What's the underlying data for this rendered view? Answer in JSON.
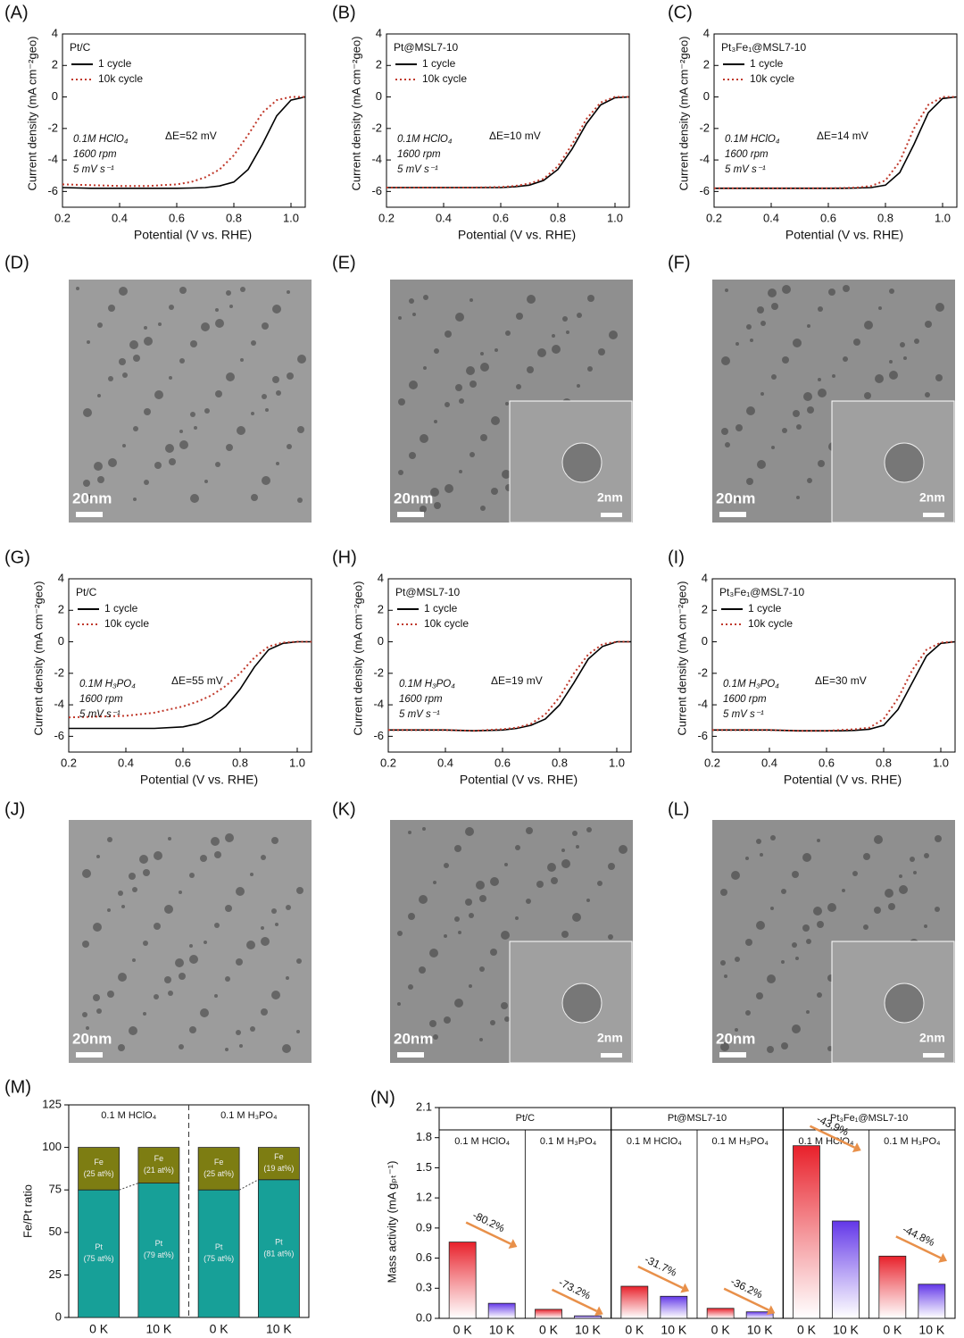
{
  "chart_data": [
    {
      "type": "line",
      "panel_label": "(A)",
      "title": "Pt/C",
      "x_label": "Potential (V vs. RHE)",
      "y_label": "Current density (mA cm⁻²geo)",
      "conditions": [
        "0.1M HClO₄",
        "1600 rpm",
        "5 mV s⁻¹"
      ],
      "annotation": "ΔE=52 mV",
      "x": [
        0.2,
        0.3,
        0.4,
        0.5,
        0.6,
        0.65,
        0.7,
        0.75,
        0.8,
        0.85,
        0.9,
        0.95,
        1.0,
        1.05
      ],
      "series": [
        {
          "name": "1 cycle",
          "color": "#000000",
          "style": "solid",
          "values": [
            -5.75,
            -5.8,
            -5.8,
            -5.8,
            -5.8,
            -5.78,
            -5.75,
            -5.65,
            -5.4,
            -4.6,
            -3.0,
            -1.2,
            -0.2,
            0
          ]
        },
        {
          "name": "10k cycle",
          "color": "#c0392b",
          "style": "dotted",
          "values": [
            -5.55,
            -5.6,
            -5.65,
            -5.65,
            -5.55,
            -5.4,
            -5.1,
            -4.6,
            -3.7,
            -2.4,
            -1.0,
            -0.2,
            0,
            0
          ]
        }
      ],
      "xlim": [
        0.2,
        1.05
      ],
      "ylim": [
        -7,
        4
      ],
      "xticks": [
        0.2,
        0.4,
        0.6,
        0.8,
        {
          "value": 1,
          "label": "1.0"
        }
      ],
      "yticks": [
        -6,
        -4,
        -2,
        0,
        2,
        4
      ]
    },
    {
      "type": "line",
      "panel_label": "(B)",
      "title": "Pt@MSL7-10",
      "x_label": "Potential (V vs. RHE)",
      "y_label": "Current density (mA cm⁻²geo)",
      "conditions": [
        "0.1M HClO₄",
        "1600 rpm",
        "5 mV s⁻¹"
      ],
      "annotation": "ΔE=10 mV",
      "x": [
        0.2,
        0.3,
        0.4,
        0.5,
        0.6,
        0.65,
        0.7,
        0.75,
        0.8,
        0.85,
        0.9,
        0.95,
        1.0,
        1.05
      ],
      "series": [
        {
          "name": "1 cycle",
          "color": "#000000",
          "style": "solid",
          "values": [
            -5.75,
            -5.75,
            -5.75,
            -5.75,
            -5.75,
            -5.7,
            -5.6,
            -5.3,
            -4.6,
            -3.3,
            -1.7,
            -0.5,
            -0.05,
            0
          ]
        },
        {
          "name": "10k cycle",
          "color": "#c0392b",
          "style": "dotted",
          "values": [
            -5.75,
            -5.75,
            -5.75,
            -5.75,
            -5.72,
            -5.65,
            -5.5,
            -5.2,
            -4.4,
            -3.0,
            -1.4,
            -0.35,
            0,
            0
          ]
        }
      ],
      "xlim": [
        0.2,
        1.05
      ],
      "ylim": [
        -7,
        4
      ],
      "xticks": [
        0.2,
        0.4,
        0.6,
        0.8,
        {
          "value": 1,
          "label": "1.0"
        }
      ],
      "yticks": [
        -6,
        -4,
        -2,
        0,
        2,
        4
      ]
    },
    {
      "type": "line",
      "panel_label": "(C)",
      "title": "Pt₃Fe₁@MSL7-10",
      "x_label": "Potential (V vs. RHE)",
      "y_label": "Current density (mA cm⁻²geo)",
      "conditions": [
        "0.1M HClO₄",
        "1600 rpm",
        "5 mV s⁻¹"
      ],
      "annotation": "ΔE=14 mV",
      "x": [
        0.2,
        0.3,
        0.4,
        0.5,
        0.6,
        0.65,
        0.7,
        0.75,
        0.8,
        0.85,
        0.9,
        0.95,
        1.0,
        1.05
      ],
      "series": [
        {
          "name": "1 cycle",
          "color": "#000000",
          "style": "solid",
          "values": [
            -5.8,
            -5.8,
            -5.8,
            -5.8,
            -5.8,
            -5.8,
            -5.78,
            -5.75,
            -5.6,
            -4.8,
            -3.0,
            -1.0,
            -0.1,
            0
          ]
        },
        {
          "name": "10k cycle",
          "color": "#c0392b",
          "style": "dotted",
          "values": [
            -5.8,
            -5.8,
            -5.8,
            -5.8,
            -5.8,
            -5.78,
            -5.75,
            -5.65,
            -5.3,
            -4.1,
            -2.0,
            -0.5,
            0,
            0
          ]
        }
      ],
      "xlim": [
        0.2,
        1.05
      ],
      "ylim": [
        -7,
        4
      ],
      "xticks": [
        0.2,
        0.4,
        0.6,
        0.8,
        {
          "value": 1,
          "label": "1.0"
        }
      ],
      "yticks": [
        -6,
        -4,
        -2,
        0,
        2,
        4
      ]
    },
    {
      "type": "line",
      "panel_label": "(G)",
      "title": "Pt/C",
      "x_label": "Potential (V vs. RHE)",
      "y_label": "Current density (mA cm⁻²geo)",
      "conditions": [
        "0.1M H₃PO₄",
        "1600 rpm",
        "5 mV s⁻¹"
      ],
      "annotation": "ΔE=55 mV",
      "x": [
        0.2,
        0.3,
        0.4,
        0.5,
        0.6,
        0.65,
        0.7,
        0.75,
        0.8,
        0.85,
        0.9,
        0.95,
        1.0,
        1.05
      ],
      "series": [
        {
          "name": "1 cycle",
          "color": "#000000",
          "style": "solid",
          "values": [
            -5.5,
            -5.5,
            -5.5,
            -5.5,
            -5.4,
            -5.2,
            -4.8,
            -4.1,
            -3.0,
            -1.6,
            -0.5,
            -0.1,
            0,
            0
          ]
        },
        {
          "name": "10k cycle",
          "color": "#c0392b",
          "style": "dotted",
          "values": [
            -4.8,
            -4.75,
            -4.7,
            -4.5,
            -4.1,
            -3.8,
            -3.4,
            -2.8,
            -2.0,
            -1.0,
            -0.3,
            -0.05,
            0,
            0
          ]
        }
      ],
      "xlim": [
        0.2,
        1.05
      ],
      "ylim": [
        -7,
        4
      ],
      "xticks": [
        0.2,
        0.4,
        0.6,
        0.8,
        {
          "value": 1,
          "label": "1.0"
        }
      ],
      "yticks": [
        -6,
        -4,
        -2,
        0,
        2,
        4
      ]
    },
    {
      "type": "line",
      "panel_label": "(H)",
      "title": "Pt@MSL7-10",
      "x_label": "Potential (V vs. RHE)",
      "y_label": "Current density (mA cm⁻²geo)",
      "conditions": [
        "0.1M H₃PO₄",
        "1600 rpm",
        "5 mV s⁻¹"
      ],
      "annotation": "ΔE=19 mV",
      "x": [
        0.2,
        0.3,
        0.4,
        0.5,
        0.6,
        0.65,
        0.7,
        0.75,
        0.8,
        0.85,
        0.9,
        0.95,
        1.0,
        1.05
      ],
      "series": [
        {
          "name": "1 cycle",
          "color": "#000000",
          "style": "solid",
          "values": [
            -5.6,
            -5.6,
            -5.6,
            -5.65,
            -5.6,
            -5.5,
            -5.3,
            -4.9,
            -4.0,
            -2.6,
            -1.1,
            -0.3,
            0,
            0
          ]
        },
        {
          "name": "10k cycle",
          "color": "#c0392b",
          "style": "dotted",
          "values": [
            -5.6,
            -5.6,
            -5.6,
            -5.65,
            -5.55,
            -5.45,
            -5.2,
            -4.6,
            -3.5,
            -2.0,
            -0.8,
            -0.15,
            0,
            0
          ]
        }
      ],
      "xlim": [
        0.2,
        1.05
      ],
      "ylim": [
        -7,
        4
      ],
      "xticks": [
        0.2,
        0.4,
        0.6,
        0.8,
        {
          "value": 1,
          "label": "1.0"
        }
      ],
      "yticks": [
        -6,
        -4,
        -2,
        0,
        2,
        4
      ]
    },
    {
      "type": "line",
      "panel_label": "(I)",
      "title": "Pt₃Fe₁@MSL7-10",
      "x_label": "Potential (V vs. RHE)",
      "y_label": "Current density (mA cm⁻²geo)",
      "conditions": [
        "0.1M H₃PO₄",
        "1600 rpm",
        "5 mV s⁻¹"
      ],
      "annotation": "ΔE=30 mV",
      "x": [
        0.2,
        0.3,
        0.4,
        0.5,
        0.6,
        0.65,
        0.7,
        0.75,
        0.8,
        0.85,
        0.9,
        0.95,
        1.0,
        1.05
      ],
      "series": [
        {
          "name": "1 cycle",
          "color": "#000000",
          "style": "solid",
          "values": [
            -5.6,
            -5.6,
            -5.6,
            -5.65,
            -5.65,
            -5.65,
            -5.62,
            -5.55,
            -5.3,
            -4.3,
            -2.6,
            -0.9,
            -0.1,
            0
          ]
        },
        {
          "name": "10k cycle",
          "color": "#c0392b",
          "style": "dotted",
          "values": [
            -5.6,
            -5.6,
            -5.6,
            -5.65,
            -5.65,
            -5.6,
            -5.55,
            -5.45,
            -4.9,
            -3.6,
            -1.8,
            -0.5,
            -0.05,
            0
          ]
        }
      ],
      "xlim": [
        0.2,
        1.05
      ],
      "ylim": [
        -7,
        4
      ],
      "xticks": [
        0.2,
        0.4,
        0.6,
        0.8,
        {
          "value": 1,
          "label": "1.0"
        }
      ],
      "yticks": [
        -6,
        -4,
        -2,
        0,
        2,
        4
      ]
    },
    {
      "type": "stacked_bar",
      "panel_label": "(M)",
      "y_label": "Fe/Pt ratio",
      "categories": [
        "0 K",
        "10 K",
        "0 K",
        "10 K"
      ],
      "groups": [
        "0.1 M HClO₄",
        "0.1 M H₃PO₄"
      ],
      "series": [
        {
          "name": "Pt",
          "color": "#17a098",
          "values": [
            75,
            79,
            75,
            81
          ],
          "value_labels": [
            "(75 at%)",
            "(79 at%)",
            "(75 at%)",
            "(81 at%)"
          ]
        },
        {
          "name": "Fe",
          "color": "#7d7d12",
          "values": [
            25,
            21,
            25,
            19
          ],
          "value_labels": [
            "(25 at%)",
            "(21 at%)",
            "(25 at%)",
            "(19 at%)"
          ]
        }
      ],
      "ylim": [
        0,
        125
      ],
      "yticks": [
        0,
        25,
        50,
        75,
        100,
        125
      ]
    },
    {
      "type": "grouped_bar",
      "panel_label": "(N)",
      "y_label": "Mass activity (mA gₚₜ⁻¹)",
      "groups": [
        "Pt/C",
        "Pt@MSL7-10",
        "Pt₃Fe₁@MSL7-10"
      ],
      "subgroups": [
        "0.1 M HClO₄",
        "0.1 M H₃PO₄",
        "0.1 M HClO₄",
        "0.1 M H₃PO₄",
        "0.1 M HClO₄",
        "0.1 M H₃PO₄"
      ],
      "series": [
        {
          "name": "0 K",
          "color": "#e8202a",
          "values": [
            0.76,
            0.09,
            0.32,
            0.1,
            1.72,
            0.62
          ]
        },
        {
          "name": "10 K",
          "color": "#6236e8",
          "values": [
            0.15,
            0.025,
            0.22,
            0.065,
            0.97,
            0.34
          ]
        }
      ],
      "changes": [
        "-80.2%",
        "-73.2%",
        "-31.7%",
        "-36.2%",
        "-43.9%",
        "-44.8%"
      ],
      "arrow_color": "#e8904a",
      "ylim": [
        0,
        2.1
      ],
      "yticks": [
        {
          "value": 0,
          "label": "0.0"
        },
        0.3,
        0.6,
        0.9,
        1.2,
        1.5,
        1.8,
        2.1
      ]
    }
  ],
  "images": [
    {
      "panel_label": "(D)",
      "scale_bar": "20nm"
    },
    {
      "panel_label": "(E)",
      "scale_bar": "20nm",
      "inset_scale_bar": "2nm"
    },
    {
      "panel_label": "(F)",
      "scale_bar": "20nm",
      "inset_scale_bar": "2nm"
    },
    {
      "panel_label": "(J)",
      "scale_bar": "20nm"
    },
    {
      "panel_label": "(K)",
      "scale_bar": "20nm",
      "inset_scale_bar": "2nm"
    },
    {
      "panel_label": "(L)",
      "scale_bar": "20nm",
      "inset_scale_bar": "2nm"
    }
  ]
}
